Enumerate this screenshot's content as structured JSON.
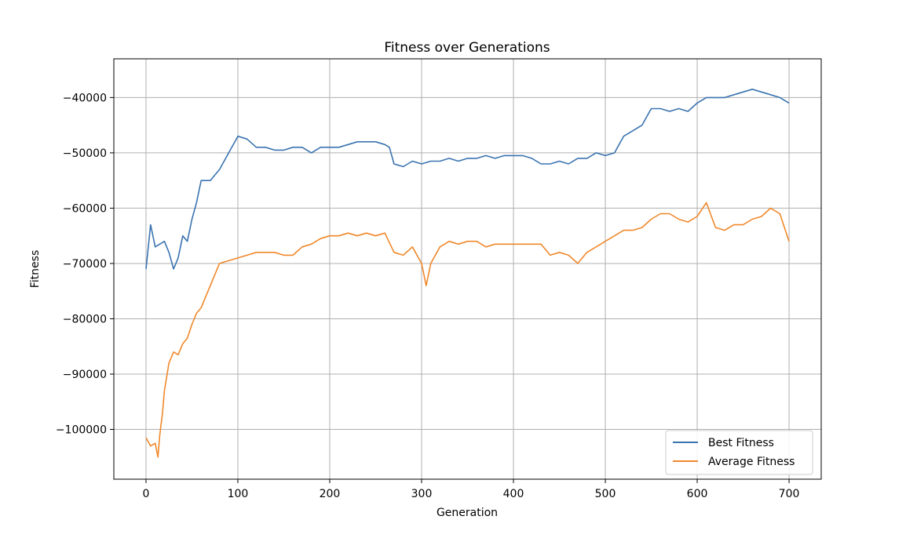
{
  "chart_data": {
    "type": "line",
    "title": "Fitness over Generations",
    "xlabel": "Generation",
    "ylabel": "Fitness",
    "xlim": [
      -35,
      735
    ],
    "ylim": [
      -109000,
      -33000
    ],
    "xticks": [
      0,
      100,
      200,
      300,
      400,
      500,
      600,
      700
    ],
    "yticks": [
      -100000,
      -90000,
      -80000,
      -70000,
      -60000,
      -50000,
      -40000
    ],
    "ytick_labels": [
      "−100000",
      "−90000",
      "−80000",
      "−70000",
      "−60000",
      "−50000",
      "−40000"
    ],
    "grid": true,
    "legend": "lower-right",
    "series": [
      {
        "name": "Best Fitness",
        "color": "#3a73b0",
        "x": [
          0,
          5,
          10,
          15,
          20,
          25,
          30,
          35,
          40,
          45,
          50,
          55,
          60,
          65,
          70,
          75,
          80,
          90,
          100,
          110,
          120,
          130,
          140,
          150,
          160,
          170,
          180,
          190,
          200,
          210,
          220,
          230,
          240,
          250,
          260,
          265,
          270,
          280,
          290,
          300,
          310,
          320,
          330,
          340,
          350,
          360,
          370,
          380,
          390,
          400,
          410,
          420,
          430,
          440,
          450,
          460,
          470,
          480,
          490,
          500,
          510,
          520,
          530,
          540,
          550,
          560,
          570,
          580,
          590,
          600,
          610,
          620,
          630,
          640,
          650,
          660,
          670,
          680,
          690,
          700
        ],
        "y": [
          -71000,
          -63000,
          -67000,
          -66500,
          -66000,
          -68000,
          -71000,
          -69000,
          -65000,
          -66000,
          -62000,
          -59000,
          -55000,
          -55000,
          -55000,
          -54000,
          -53000,
          -50000,
          -47000,
          -47500,
          -49000,
          -49000,
          -49500,
          -49500,
          -49000,
          -49000,
          -50000,
          -49000,
          -49000,
          -49000,
          -48500,
          -48000,
          -48000,
          -48000,
          -48500,
          -49000,
          -52000,
          -52500,
          -51500,
          -52000,
          -51500,
          -51500,
          -51000,
          -51500,
          -51000,
          -51000,
          -50500,
          -51000,
          -50500,
          -50500,
          -50500,
          -51000,
          -52000,
          -52000,
          -51500,
          -52000,
          -51000,
          -51000,
          -50000,
          -50500,
          -50000,
          -47000,
          -46000,
          -45000,
          -42000,
          -42000,
          -42500,
          -42000,
          -42500,
          -41000,
          -40000,
          -40000,
          -40000,
          -39500,
          -39000,
          -38500,
          -39000,
          -39500,
          -40000,
          -41000
        ]
      },
      {
        "name": "Average Fitness",
        "color": "#f0882b",
        "x": [
          0,
          5,
          10,
          13,
          15,
          18,
          20,
          25,
          30,
          35,
          40,
          45,
          50,
          55,
          60,
          65,
          70,
          75,
          80,
          90,
          100,
          110,
          120,
          130,
          140,
          150,
          160,
          170,
          180,
          190,
          200,
          210,
          220,
          230,
          240,
          250,
          260,
          270,
          280,
          290,
          300,
          305,
          310,
          320,
          330,
          340,
          350,
          360,
          370,
          380,
          390,
          400,
          410,
          420,
          430,
          440,
          450,
          460,
          470,
          480,
          490,
          500,
          510,
          520,
          530,
          540,
          550,
          560,
          570,
          580,
          590,
          600,
          610,
          620,
          630,
          640,
          650,
          660,
          670,
          680,
          690,
          700
        ],
        "y": [
          -101500,
          -103000,
          -102500,
          -105000,
          -101000,
          -97000,
          -93000,
          -88000,
          -86000,
          -86500,
          -84500,
          -83500,
          -81000,
          -79000,
          -78000,
          -76000,
          -74000,
          -72000,
          -70000,
          -69500,
          -69000,
          -68500,
          -68000,
          -68000,
          -68000,
          -68500,
          -68500,
          -67000,
          -66500,
          -65500,
          -65000,
          -65000,
          -64500,
          -65000,
          -64500,
          -65000,
          -64500,
          -68000,
          -68500,
          -67000,
          -70000,
          -74000,
          -70000,
          -67000,
          -66000,
          -66500,
          -66000,
          -66000,
          -67000,
          -66500,
          -66500,
          -66500,
          -66500,
          -66500,
          -66500,
          -68500,
          -68000,
          -68500,
          -70000,
          -68000,
          -67000,
          -66000,
          -65000,
          -64000,
          -64000,
          -63500,
          -62000,
          -61000,
          -61000,
          -62000,
          -62500,
          -61500,
          -59000,
          -63500,
          -64000,
          -63000,
          -63000,
          -62000,
          -61500,
          -60000,
          -61000,
          -66000
        ]
      }
    ]
  }
}
